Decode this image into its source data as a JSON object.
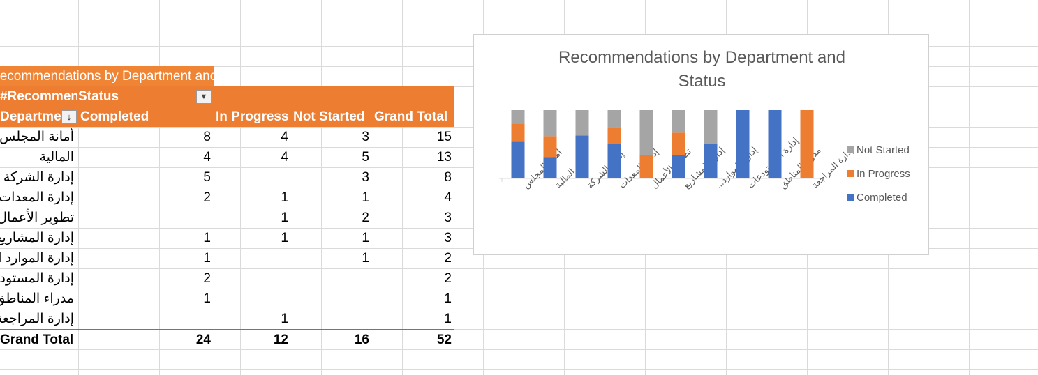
{
  "pivot": {
    "title": "Recommendations by Department and Status",
    "value_label": "#Recommendations",
    "column_field": "Status",
    "row_field": "Department",
    "columns": [
      "Completed",
      "In Progress",
      "Not Started",
      "Grand Total"
    ],
    "rows": [
      {
        "dept": "أمانة المجلس",
        "completed": "8",
        "in_progress": "4",
        "not_started": "3",
        "total": "15"
      },
      {
        "dept": "المالية",
        "completed": "4",
        "in_progress": "4",
        "not_started": "5",
        "total": "13"
      },
      {
        "dept": "إدارة الشركة",
        "completed": "5",
        "in_progress": "",
        "not_started": "3",
        "total": "8"
      },
      {
        "dept": "إدارة المعدات",
        "completed": "2",
        "in_progress": "1",
        "not_started": "1",
        "total": "4"
      },
      {
        "dept": "تطوير الأعمال",
        "completed": "",
        "in_progress": "1",
        "not_started": "2",
        "total": "3"
      },
      {
        "dept": "إدارة المشاريع",
        "completed": "1",
        "in_progress": "1",
        "not_started": "1",
        "total": "3"
      },
      {
        "dept": "إدارة الموارد البشرية",
        "completed": "1",
        "in_progress": "",
        "not_started": "1",
        "total": "2"
      },
      {
        "dept": "إدارة المستودعات",
        "completed": "2",
        "in_progress": "",
        "not_started": "",
        "total": "2"
      },
      {
        "dept": "مدراء المناطق",
        "completed": "1",
        "in_progress": "",
        "not_started": "",
        "total": "1"
      },
      {
        "dept": "إدارة المراجعة",
        "completed": "",
        "in_progress": "1",
        "not_started": "",
        "total": "1"
      }
    ],
    "grand_total": {
      "label": "Grand Total",
      "completed": "24",
      "in_progress": "12",
      "not_started": "16",
      "total": "52"
    }
  },
  "chart_data": {
    "type": "bar",
    "stacked": "100%",
    "title": "Recommendations by Department and Status",
    "categories": [
      "أمانة المجلس",
      "المالية",
      "إدارة الشركة",
      "إدارة المعدات",
      "تطوير الأعمال",
      "إدارة المشاريع",
      "إدارة الموارد...",
      "إدارة المستودعات",
      "مدراء المناطق",
      "إدارة المراجعة"
    ],
    "series": [
      {
        "name": "Completed",
        "color": "#4472c4",
        "values": [
          8,
          4,
          5,
          2,
          0,
          1,
          1,
          2,
          1,
          0
        ]
      },
      {
        "name": "In Progress",
        "color": "#ed7d31",
        "values": [
          4,
          4,
          0,
          1,
          1,
          1,
          0,
          0,
          0,
          1
        ]
      },
      {
        "name": "Not Started",
        "color": "#a5a5a5",
        "values": [
          3,
          5,
          3,
          1,
          2,
          1,
          1,
          0,
          0,
          0
        ]
      }
    ],
    "legend_order": [
      "Not Started",
      "In Progress",
      "Completed"
    ],
    "legend_position": "right",
    "grid": false
  }
}
